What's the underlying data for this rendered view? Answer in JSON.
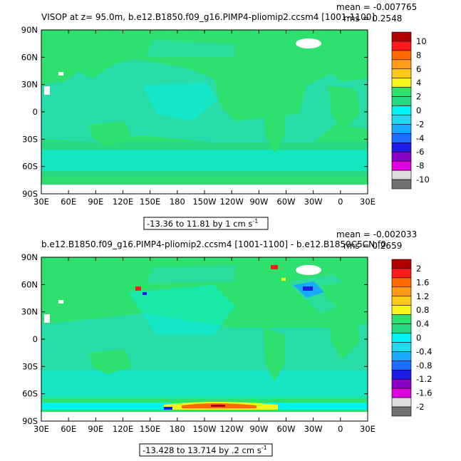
{
  "panels": [
    {
      "title": "VISOP  at z=   95.0m, b.e12.B1850.f09_g16.PIMP4-pliomip2.ccsm4 [1001-1100]",
      "mean_label": "mean = -0.007765",
      "rms_label": "rms = 0.2548",
      "contour_info": "-13.36 to 11.81 by 1 cm s",
      "contour_units_sup": "-1"
    },
    {
      "title": "b.e12.B1850.f09_g16.PIMP4-pliomip2.ccsm4 [1001-1100] - b.e12.B1850C5CN.f0",
      "mean_label": "mean = -0.002033",
      "rms_label": "rms = 0.2659",
      "contour_info": "-13.428 to 13.714 by .2 cm s",
      "contour_units_sup": "-1"
    }
  ],
  "chart_data": [
    {
      "type": "heatmap",
      "title": "VISOP  at z=   95.0m, b.e12.B1850.f09_g16.PIMP4-pliomip2.ccsm4 [1001-1100]",
      "x_ticks": [
        "30E",
        "60E",
        "90E",
        "120E",
        "150E",
        "180",
        "150W",
        "120W",
        "90W",
        "60W",
        "30W",
        "0",
        "30E"
      ],
      "y_ticks": [
        "90N",
        "60N",
        "30N",
        "0",
        "30S",
        "60S",
        "90S"
      ],
      "colorbar": {
        "labels": [
          "10",
          "8",
          "6",
          "4",
          "2",
          "0",
          "-2",
          "-4",
          "-6",
          "-8",
          "-10"
        ],
        "colors": [
          "#b40000",
          "#ff1a1a",
          "#ff6a00",
          "#ff9a1a",
          "#ffc91a",
          "#f5f51a",
          "#2ee06e",
          "#28d982",
          "#00f2f2",
          "#22d7ee",
          "#19aaff",
          "#1f6dff",
          "#1c1ce6",
          "#8a00c8",
          "#e000e0",
          "#dcdcdc",
          "#707070"
        ]
      },
      "mean": -0.007765,
      "rms": 0.2548,
      "contour_min": -13.36,
      "contour_max": 11.81,
      "contour_interval": 1,
      "units": "cm s-1"
    },
    {
      "type": "heatmap",
      "title": "b.e12.B1850.f09_g16.PIMP4-pliomip2.ccsm4 [1001-1100] - b.e12.B1850C5CN.f0",
      "x_ticks": [
        "30E",
        "60E",
        "90E",
        "120E",
        "150E",
        "180",
        "150W",
        "120W",
        "90W",
        "60W",
        "30W",
        "0",
        "30E"
      ],
      "y_ticks": [
        "90N",
        "60N",
        "30N",
        "0",
        "30S",
        "60S",
        "90S"
      ],
      "colorbar": {
        "labels": [
          "2",
          "1.6",
          "1.2",
          "0.8",
          "0.4",
          "0",
          "-0.4",
          "-0.8",
          "-1.2",
          "-1.6",
          "-2"
        ],
        "colors": [
          "#b40000",
          "#ff1a1a",
          "#ff6a00",
          "#ff9a1a",
          "#ffc91a",
          "#f5f51a",
          "#2ee06e",
          "#28d982",
          "#00f2f2",
          "#22d7ee",
          "#19aaff",
          "#1f6dff",
          "#1c1ce6",
          "#8a00c8",
          "#e000e0",
          "#dcdcdc",
          "#707070"
        ]
      },
      "mean": -0.002033,
      "rms": 0.2659,
      "contour_min": -13.428,
      "contour_max": 13.714,
      "contour_interval": 0.2,
      "units": "cm s-1"
    }
  ]
}
